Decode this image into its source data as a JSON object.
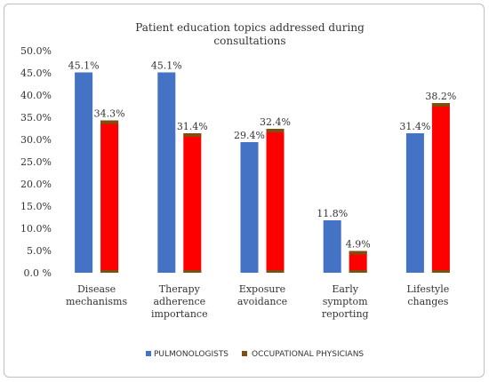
{
  "chart_data": {
    "type": "bar",
    "title": "Patient education topics addressed during consultations",
    "title_lines": [
      "Patient education topics addressed during",
      "consultations"
    ],
    "categories": [
      "Disease mechanisms",
      "Therapy adherence importance",
      "Exposure avoidance",
      "Early symptom reporting",
      "Lifestyle changes"
    ],
    "category_lines": [
      [
        "Disease",
        "mechanisms"
      ],
      [
        "Therapy",
        "adherence",
        "importance"
      ],
      [
        "Exposure",
        "avoidance"
      ],
      [
        "Early",
        "symptom",
        "reporting"
      ],
      [
        "Lifestyle",
        "changes"
      ]
    ],
    "series": [
      {
        "name": "PULMONOLOGISTS",
        "color": "#4472c4",
        "values": [
          45.1,
          45.1,
          29.4,
          11.8,
          31.4
        ],
        "labels": [
          "45.1%",
          "45.1%",
          "29.4%",
          "11.8%",
          "31.4%"
        ]
      },
      {
        "name": "OCCUPATIONAL PHYSICIANS",
        "color": "#ff0000",
        "legend_color": "#7f4f0f",
        "values": [
          34.3,
          31.4,
          32.4,
          4.9,
          38.2
        ],
        "labels": [
          "34.3%",
          "31.4%",
          "32.4%",
          "4.9%",
          "38.2%"
        ]
      }
    ],
    "yticks": [
      "0.0 %",
      "5.0%",
      "10.0%",
      "15.0%",
      "20.0%",
      "25.0%",
      "30.0%",
      "35.0%",
      "40.0%",
      "45.0%",
      "50.0%"
    ],
    "ylim": [
      0,
      50
    ],
    "xlabel": "",
    "ylabel": "",
    "grid": false,
    "legend_position": "bottom"
  }
}
